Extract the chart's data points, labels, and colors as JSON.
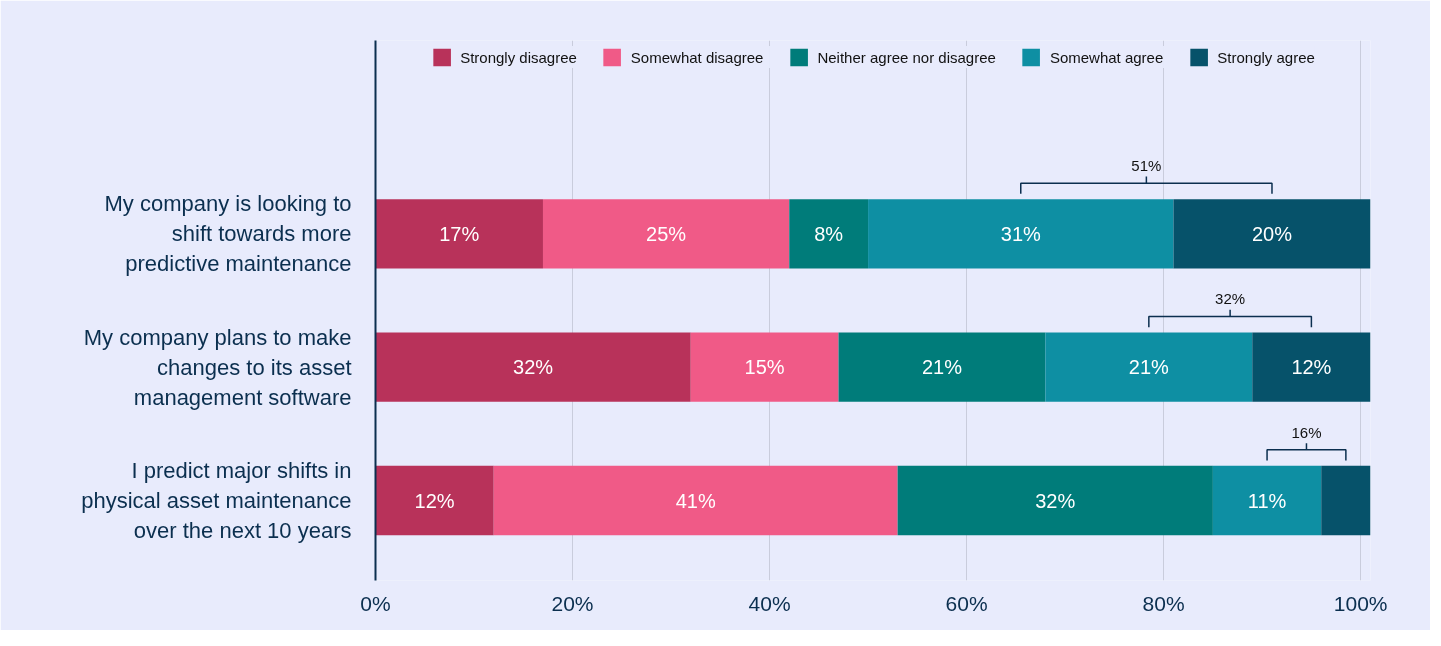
{
  "chart_data": {
    "type": "bar",
    "orientation": "horizontal",
    "stacked": true,
    "categories": [
      "My company is looking to shift towards more predictive maintenance",
      "My company plans to make changes to its asset management software",
      "I predict major shifts in physical asset maintenance over the next 10 years"
    ],
    "series": [
      {
        "name": "Strongly disagree",
        "color": "#b8325a",
        "values": [
          17,
          32,
          12
        ],
        "value_labels": [
          "17%",
          "32%",
          "12%"
        ]
      },
      {
        "name": "Somewhat disagree",
        "color": "#f05a87",
        "values": [
          25,
          15,
          41
        ],
        "value_labels": [
          "25%",
          "15%",
          "41%"
        ]
      },
      {
        "name": "Neither agree nor disagree",
        "color": "#007c7a",
        "values": [
          8,
          21,
          32
        ],
        "value_labels": [
          "8%",
          "21%",
          "32%"
        ]
      },
      {
        "name": "Somewhat agree",
        "color": "#0e8fa3",
        "values": [
          31,
          21,
          11
        ],
        "value_labels": [
          "31%",
          "21%",
          "11%"
        ]
      },
      {
        "name": "Strongly agree",
        "color": "#06526a",
        "values": [
          20,
          12,
          5
        ],
        "value_labels": [
          "20%",
          "12%",
          null
        ]
      }
    ],
    "xlim": [
      0,
      101
    ],
    "xticks": [
      {
        "value": 0,
        "label": "0%"
      },
      {
        "value": 20,
        "label": "20%"
      },
      {
        "value": 40,
        "label": "40%"
      },
      {
        "value": 60,
        "label": "60%"
      },
      {
        "value": 80,
        "label": "80%"
      },
      {
        "value": 100,
        "label": "100%"
      }
    ],
    "grid": "x",
    "legend": "top",
    "annotations": [
      "51%",
      "32%",
      "16%"
    ]
  }
}
